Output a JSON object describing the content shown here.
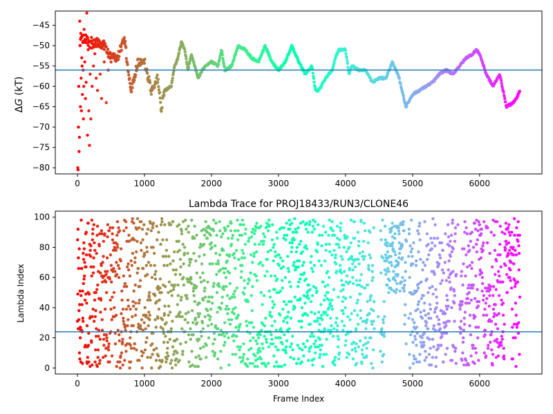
{
  "chart_data": [
    {
      "type": "scatter",
      "title": "",
      "xlabel": "",
      "ylabel": "ΔG (kT)",
      "ylabel_symbol": "Δ",
      "ylabel_var": "G",
      "ylabel_unit": " (kT)",
      "xlim": [
        -330,
        6930
      ],
      "ylim": [
        -81.5,
        -41.5
      ],
      "xticks": [
        0,
        1000,
        2000,
        3000,
        4000,
        5000,
        6000
      ],
      "yticks": [
        -80,
        -75,
        -70,
        -65,
        -60,
        -55,
        -50,
        -45
      ],
      "hline": -56,
      "hline_color": "#1f77b4",
      "colormap": "rainbow-reversed",
      "frame_count": 6600,
      "trace_points": [
        [
          0,
          -50
        ],
        [
          100,
          -48
        ],
        [
          200,
          -50
        ],
        [
          300,
          -49
        ],
        [
          400,
          -50
        ],
        [
          500,
          -53
        ],
        [
          600,
          -53
        ],
        [
          700,
          -48
        ],
        [
          750,
          -55
        ],
        [
          800,
          -61
        ],
        [
          900,
          -54
        ],
        [
          1000,
          -54
        ],
        [
          1100,
          -61
        ],
        [
          1200,
          -58
        ],
        [
          1250,
          -66
        ],
        [
          1300,
          -61
        ],
        [
          1400,
          -60
        ],
        [
          1450,
          -55
        ],
        [
          1500,
          -53
        ],
        [
          1550,
          -49
        ],
        [
          1600,
          -51
        ],
        [
          1650,
          -56
        ],
        [
          1700,
          -52
        ],
        [
          1750,
          -55
        ],
        [
          1800,
          -58
        ],
        [
          1900,
          -55
        ],
        [
          2000,
          -54
        ],
        [
          2100,
          -55
        ],
        [
          2150,
          -51
        ],
        [
          2200,
          -56
        ],
        [
          2300,
          -55
        ],
        [
          2400,
          -50
        ],
        [
          2500,
          -51
        ],
        [
          2600,
          -53
        ],
        [
          2700,
          -54
        ],
        [
          2800,
          -50
        ],
        [
          2850,
          -52
        ],
        [
          2900,
          -54
        ],
        [
          3000,
          -56
        ],
        [
          3100,
          -54
        ],
        [
          3200,
          -50
        ],
        [
          3300,
          -54
        ],
        [
          3400,
          -57
        ],
        [
          3500,
          -55
        ],
        [
          3550,
          -61
        ],
        [
          3600,
          -61
        ],
        [
          3700,
          -58
        ],
        [
          3800,
          -56
        ],
        [
          3850,
          -53
        ],
        [
          3900,
          -51
        ],
        [
          4000,
          -51
        ],
        [
          4050,
          -57
        ],
        [
          4100,
          -55
        ],
        [
          4200,
          -56
        ],
        [
          4300,
          -56
        ],
        [
          4400,
          -59
        ],
        [
          4500,
          -58
        ],
        [
          4600,
          -58
        ],
        [
          4700,
          -54
        ],
        [
          4800,
          -58
        ],
        [
          4900,
          -65
        ],
        [
          5000,
          -62
        ],
        [
          5100,
          -61
        ],
        [
          5200,
          -60
        ],
        [
          5300,
          -59
        ],
        [
          5400,
          -57
        ],
        [
          5500,
          -56
        ],
        [
          5600,
          -57
        ],
        [
          5700,
          -55
        ],
        [
          5800,
          -53
        ],
        [
          5900,
          -52
        ],
        [
          5950,
          -51
        ],
        [
          6000,
          -52
        ],
        [
          6100,
          -57
        ],
        [
          6200,
          -60
        ],
        [
          6300,
          -57
        ],
        [
          6400,
          -65
        ],
        [
          6500,
          -64
        ],
        [
          6550,
          -63
        ],
        [
          6600,
          -61
        ]
      ],
      "early_scatter": [
        [
          5,
          -80
        ],
        [
          10,
          -80.5
        ],
        [
          15,
          -70
        ],
        [
          20,
          -60
        ],
        [
          25,
          -76
        ],
        [
          30,
          -72.5
        ],
        [
          35,
          -44
        ],
        [
          40,
          -50
        ],
        [
          45,
          -65
        ],
        [
          50,
          -47
        ],
        [
          55,
          -58
        ],
        [
          60,
          -66
        ],
        [
          65,
          -53
        ],
        [
          70,
          -55
        ],
        [
          75,
          -62
        ],
        [
          80,
          -49
        ],
        [
          85,
          -56
        ],
        [
          90,
          -68
        ],
        [
          95,
          -60
        ],
        [
          100,
          -46
        ],
        [
          110,
          -54
        ],
        [
          120,
          -63
        ],
        [
          130,
          -59
        ],
        [
          140,
          -42
        ],
        [
          150,
          -72
        ],
        [
          160,
          -51
        ],
        [
          170,
          -66
        ],
        [
          180,
          -74.5
        ],
        [
          190,
          -57
        ],
        [
          200,
          -68
        ],
        [
          210,
          -48
        ],
        [
          220,
          -60
        ],
        [
          240,
          -55
        ],
        [
          260,
          -52
        ],
        [
          280,
          -58
        ],
        [
          300,
          -61
        ],
        [
          320,
          -50
        ],
        [
          340,
          -57
        ],
        [
          360,
          -63
        ],
        [
          380,
          -49
        ],
        [
          400,
          -54
        ],
        [
          430,
          -64
        ],
        [
          460,
          -56
        ],
        [
          490,
          -52
        ]
      ]
    },
    {
      "type": "scatter",
      "title": "Lambda Trace for PROJ18433/RUN3/CLONE46",
      "xlabel": "Frame Index",
      "ylabel": "Lambda Index",
      "xlim": [
        -330,
        6930
      ],
      "ylim": [
        -4,
        104
      ],
      "xticks": [
        0,
        1000,
        2000,
        3000,
        4000,
        5000,
        6000
      ],
      "yticks": [
        0,
        20,
        40,
        60,
        80,
        100
      ],
      "hline": 24,
      "hline_color": "#1f77b4",
      "colormap": "rainbow-reversed",
      "frame_count": 6600,
      "lambda_range": [
        0,
        99
      ],
      "sparse_windows": [
        [
          4430,
          4520
        ],
        [
          4900,
          4940
        ],
        [
          5650,
          5700
        ]
      ],
      "high_band_windows": [
        [
          4600,
          4880
        ],
        [
          6000,
          6050
        ],
        [
          6380,
          6480
        ]
      ]
    }
  ]
}
